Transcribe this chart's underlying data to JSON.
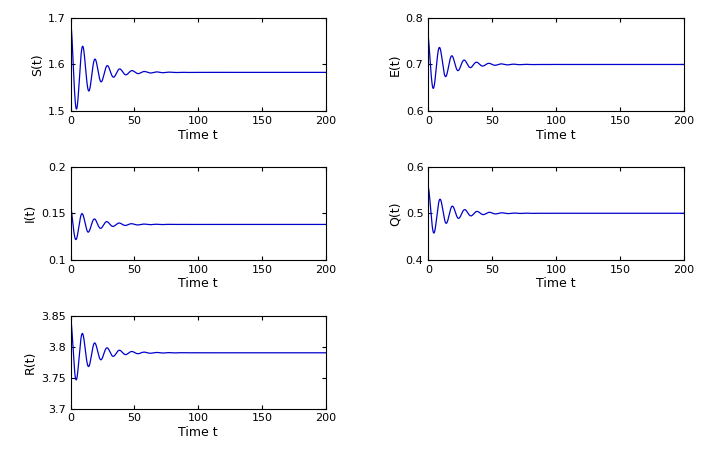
{
  "subplots": [
    {
      "ylabel": "S(t)",
      "xlabel": "Time t",
      "ylim": [
        1.5,
        1.7
      ],
      "yticks": [
        1.5,
        1.6,
        1.7
      ],
      "xlim": [
        0,
        200
      ],
      "xticks": [
        0,
        50,
        100,
        150,
        200
      ],
      "equilibrium": 1.583,
      "amplitude": 0.11,
      "decay": 0.07,
      "freq": 0.65,
      "phase": 0.0
    },
    {
      "ylabel": "E(t)",
      "xlabel": "Time t",
      "ylim": [
        0.6,
        0.8
      ],
      "yticks": [
        0.6,
        0.7,
        0.8
      ],
      "xlim": [
        0,
        200
      ],
      "xticks": [
        0,
        50,
        100,
        150,
        200
      ],
      "equilibrium": 0.7,
      "amplitude": 0.068,
      "decay": 0.07,
      "freq": 0.65,
      "phase": 0.5
    },
    {
      "ylabel": "I(t)",
      "xlabel": "Time t",
      "ylim": [
        0.1,
        0.2
      ],
      "yticks": [
        0.1,
        0.15,
        0.2
      ],
      "xlim": [
        0,
        200
      ],
      "xticks": [
        0,
        50,
        100,
        150,
        200
      ],
      "equilibrium": 0.138,
      "amplitude": 0.022,
      "decay": 0.07,
      "freq": 0.65,
      "phase": 0.3
    },
    {
      "ylabel": "Q(t)",
      "xlabel": "Time t",
      "ylim": [
        0.4,
        0.6
      ],
      "yticks": [
        0.4,
        0.5,
        0.6
      ],
      "xlim": [
        0,
        200
      ],
      "xticks": [
        0,
        50,
        100,
        150,
        200
      ],
      "equilibrium": 0.5,
      "amplitude": 0.058,
      "decay": 0.07,
      "freq": 0.65,
      "phase": 0.2
    },
    {
      "ylabel": "R(t)",
      "xlabel": "Time t",
      "ylim": [
        3.7,
        3.85
      ],
      "yticks": [
        3.7,
        3.75,
        3.8,
        3.85
      ],
      "xlim": [
        0,
        200
      ],
      "xticks": [
        0,
        50,
        100,
        150,
        200
      ],
      "equilibrium": 3.79,
      "amplitude": 0.06,
      "decay": 0.07,
      "freq": 0.65,
      "phase": 0.15
    }
  ],
  "line_color": "#0000CD",
  "background_color": "#ffffff",
  "font_size": 9,
  "tick_font_size": 8
}
